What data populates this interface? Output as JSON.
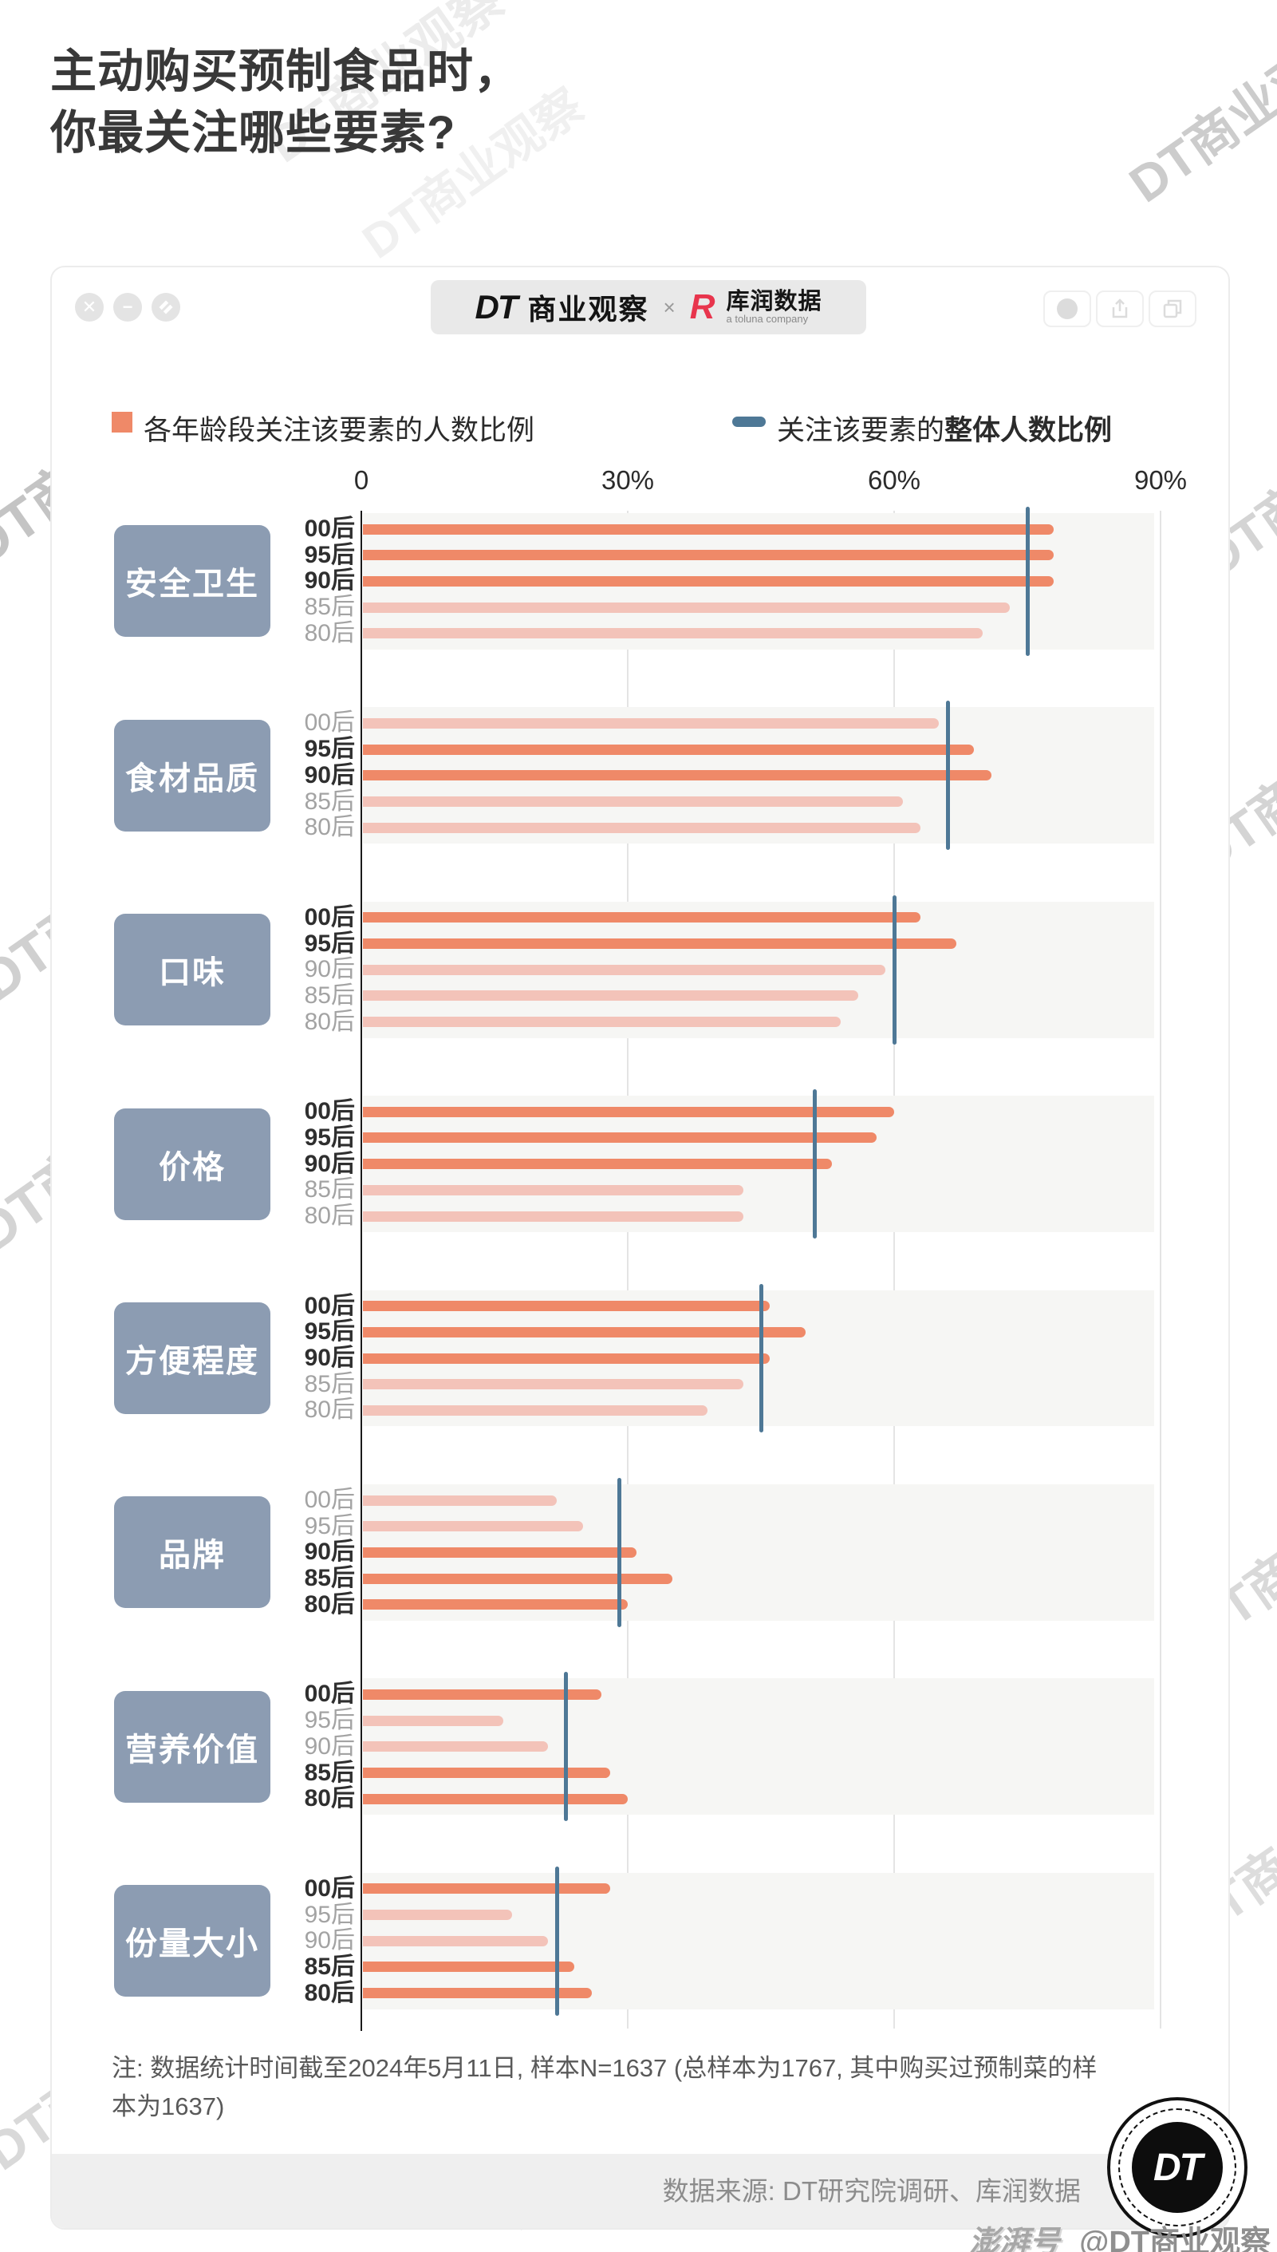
{
  "title": {
    "line1": "主动购买预制食品时，",
    "line2": "你最关注哪些要素?"
  },
  "header": {
    "window_controls": [
      "close",
      "minimize",
      "resize"
    ],
    "brand_dt": "DT",
    "brand_name": "商业观察",
    "separator": "×",
    "partner_mark": "R",
    "partner_name": "库润数据",
    "partner_sub": "a toluna company",
    "toolbar_buttons": [
      "record",
      "share",
      "copy"
    ]
  },
  "legend": {
    "series_label": "各年龄段关注该要素的人数比例",
    "overall_prefix": "关注该要素的",
    "overall_bold": "整体人数比例"
  },
  "chart_data": {
    "type": "bar",
    "orientation": "horizontal",
    "title": "主动购买预制食品时，你最关注哪些要素?",
    "xlim": [
      0,
      90
    ],
    "x_ticks": [
      "0",
      "30%",
      "60%",
      "90%"
    ],
    "grid": "vertical gridlines at 30/60/90, zebra band per category",
    "legend_position": "top",
    "age_groups": [
      "00后",
      "95后",
      "90后",
      "85后",
      "80后"
    ],
    "unit": "percent of respondents",
    "categories": [
      {
        "label": "安全卫生",
        "overall": 75,
        "bars": [
          {
            "group": "00后",
            "value": 78,
            "emph": true
          },
          {
            "group": "95后",
            "value": 78,
            "emph": true
          },
          {
            "group": "90后",
            "value": 78,
            "emph": true
          },
          {
            "group": "85后",
            "value": 73,
            "emph": false
          },
          {
            "group": "80后",
            "value": 70,
            "emph": false
          }
        ]
      },
      {
        "label": "食材品质",
        "overall": 66,
        "bars": [
          {
            "group": "00后",
            "value": 65,
            "emph": false
          },
          {
            "group": "95后",
            "value": 69,
            "emph": true
          },
          {
            "group": "90后",
            "value": 71,
            "emph": true
          },
          {
            "group": "85后",
            "value": 61,
            "emph": false
          },
          {
            "group": "80后",
            "value": 63,
            "emph": false
          }
        ]
      },
      {
        "label": "口味",
        "overall": 60,
        "bars": [
          {
            "group": "00后",
            "value": 63,
            "emph": true
          },
          {
            "group": "95后",
            "value": 67,
            "emph": true
          },
          {
            "group": "90后",
            "value": 59,
            "emph": false
          },
          {
            "group": "85后",
            "value": 56,
            "emph": false
          },
          {
            "group": "80后",
            "value": 54,
            "emph": false
          }
        ]
      },
      {
        "label": "价格",
        "overall": 51,
        "bars": [
          {
            "group": "00后",
            "value": 60,
            "emph": true
          },
          {
            "group": "95后",
            "value": 58,
            "emph": true
          },
          {
            "group": "90后",
            "value": 53,
            "emph": true
          },
          {
            "group": "85后",
            "value": 43,
            "emph": false
          },
          {
            "group": "80后",
            "value": 43,
            "emph": false
          }
        ]
      },
      {
        "label": "方便程度",
        "overall": 45,
        "bars": [
          {
            "group": "00后",
            "value": 46,
            "emph": true
          },
          {
            "group": "95后",
            "value": 50,
            "emph": true
          },
          {
            "group": "90后",
            "value": 46,
            "emph": true
          },
          {
            "group": "85后",
            "value": 43,
            "emph": false
          },
          {
            "group": "80后",
            "value": 39,
            "emph": false
          }
        ]
      },
      {
        "label": "品牌",
        "overall": 29,
        "bars": [
          {
            "group": "00后",
            "value": 22,
            "emph": false
          },
          {
            "group": "95后",
            "value": 25,
            "emph": false
          },
          {
            "group": "90后",
            "value": 31,
            "emph": true
          },
          {
            "group": "85后",
            "value": 35,
            "emph": true
          },
          {
            "group": "80后",
            "value": 30,
            "emph": true
          }
        ]
      },
      {
        "label": "营养价值",
        "overall": 23,
        "bars": [
          {
            "group": "00后",
            "value": 27,
            "emph": true
          },
          {
            "group": "95后",
            "value": 16,
            "emph": false
          },
          {
            "group": "90后",
            "value": 21,
            "emph": false
          },
          {
            "group": "85后",
            "value": 28,
            "emph": true
          },
          {
            "group": "80后",
            "value": 30,
            "emph": true
          }
        ]
      },
      {
        "label": "份量大小",
        "overall": 22,
        "bars": [
          {
            "group": "00后",
            "value": 28,
            "emph": true
          },
          {
            "group": "95后",
            "value": 17,
            "emph": false
          },
          {
            "group": "90后",
            "value": 21,
            "emph": false
          },
          {
            "group": "85后",
            "value": 24,
            "emph": true
          },
          {
            "group": "80后",
            "value": 26,
            "emph": true
          }
        ]
      }
    ]
  },
  "footnote": {
    "text": "注: 数据统计时间截至2024年5月11日, 样本N=1637 (总样本为1767, 其中购买过预制菜的样本为1637)"
  },
  "source": {
    "text": "数据来源: DT研究院调研、库润数据"
  },
  "badge": {
    "brand": "澎湃号",
    "handle": "@DT商业观察"
  },
  "logo_circle": {
    "text": "DT"
  },
  "watermark": {
    "text": "DT商业观察"
  },
  "colors": {
    "bar_solid": "#EF8968",
    "bar_light": "#F3C3B9",
    "overall_line": "#4E7896",
    "label_box": "#8C9CB2",
    "accent_red": "#E8354D",
    "band_bg": "#F6F6F4",
    "footer_bg": "#EFEFEF"
  }
}
